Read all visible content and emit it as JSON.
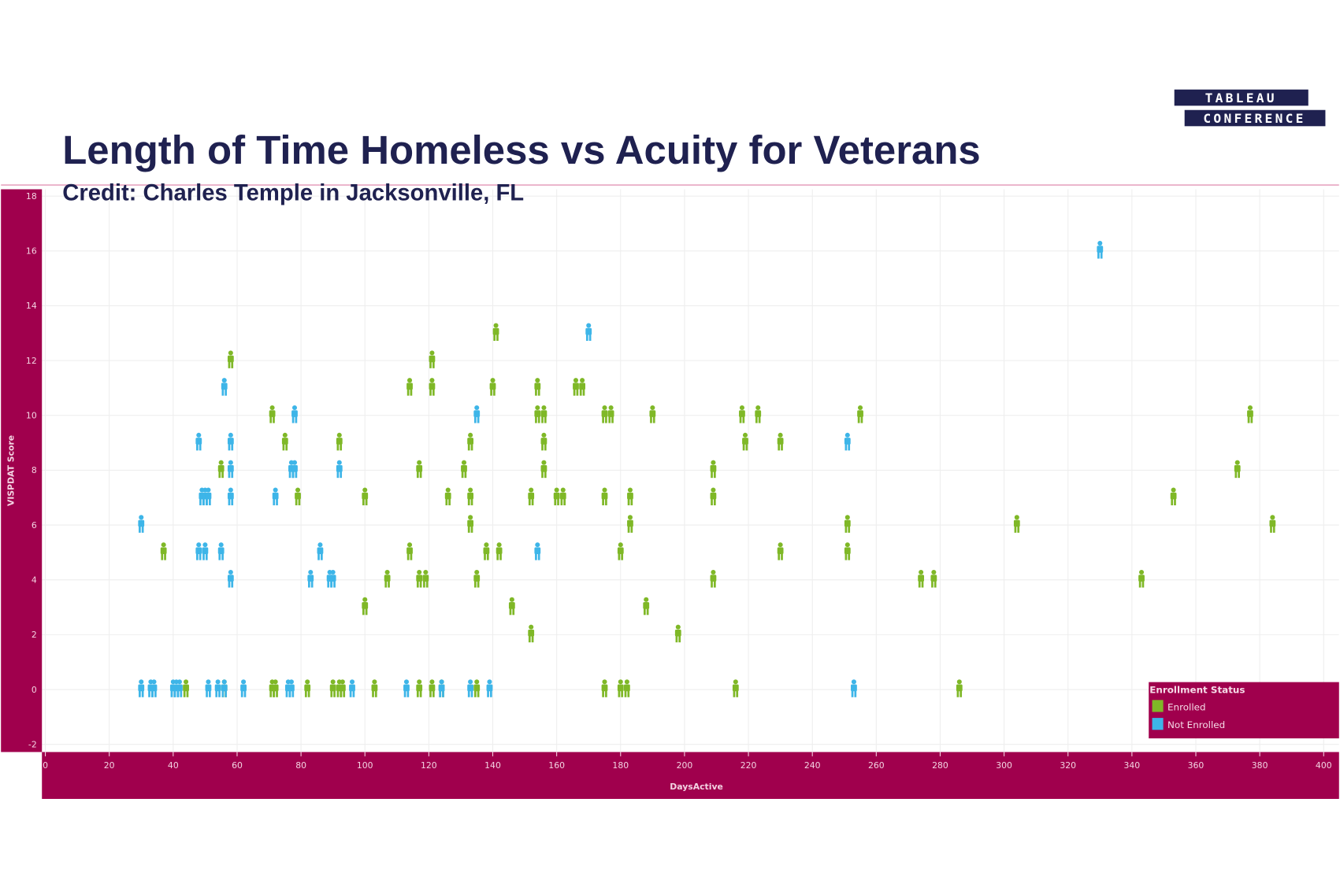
{
  "header": {
    "title": "Length of Time Homeless vs Acuity for Veterans",
    "credit": "Credit: Charles Temple in Jacksonville, FL",
    "logo_line1": "TABLEAU",
    "logo_line2": "CONFERENCE"
  },
  "colors": {
    "brand": "#a0004d",
    "title": "#1f2150",
    "enrolled": "#7fb827",
    "not_enrolled": "#3db5e8"
  },
  "chart_data": {
    "type": "scatter",
    "marker": "person-icon",
    "xlabel": "DaysActive",
    "ylabel": "VISPDAT Score",
    "xlim": [
      0,
      400
    ],
    "ylim": [
      -2,
      18
    ],
    "xticks": [
      "0",
      "20",
      "40",
      "60",
      "80",
      "100",
      "120",
      "140",
      "160",
      "180",
      "200",
      "220",
      "240",
      "260",
      "280",
      "300",
      "320",
      "340",
      "360",
      "380",
      "400"
    ],
    "yticks": [
      "-2",
      "0",
      "2",
      "4",
      "6",
      "8",
      "10",
      "12",
      "14",
      "16",
      "18"
    ],
    "grid": true,
    "legend": {
      "title": "Enrollment Status",
      "placement": "bottom-right"
    },
    "series": [
      {
        "name": "Enrolled",
        "color": "#7fb827",
        "points": [
          [
            37,
            5
          ],
          [
            58,
            12
          ],
          [
            55,
            8
          ],
          [
            71,
            10
          ],
          [
            75,
            9
          ],
          [
            79,
            7
          ],
          [
            92,
            9
          ],
          [
            100,
            7
          ],
          [
            100,
            3
          ],
          [
            107,
            4
          ],
          [
            114,
            11
          ],
          [
            114,
            5
          ],
          [
            117,
            8
          ],
          [
            117,
            4
          ],
          [
            119,
            4
          ],
          [
            121,
            12
          ],
          [
            121,
            11
          ],
          [
            126,
            7
          ],
          [
            131,
            8
          ],
          [
            133,
            9
          ],
          [
            133,
            7
          ],
          [
            133,
            6
          ],
          [
            135,
            4
          ],
          [
            138,
            5
          ],
          [
            142,
            5
          ],
          [
            140,
            11
          ],
          [
            141,
            13
          ],
          [
            146,
            3
          ],
          [
            152,
            7
          ],
          [
            152,
            2
          ],
          [
            154,
            11
          ],
          [
            154,
            10
          ],
          [
            156,
            10
          ],
          [
            156,
            9
          ],
          [
            156,
            8
          ],
          [
            160,
            7
          ],
          [
            162,
            7
          ],
          [
            166,
            11
          ],
          [
            168,
            11
          ],
          [
            175,
            10
          ],
          [
            177,
            10
          ],
          [
            175,
            7
          ],
          [
            180,
            5
          ],
          [
            183,
            6
          ],
          [
            183,
            7
          ],
          [
            188,
            3
          ],
          [
            190,
            10
          ],
          [
            198,
            2
          ],
          [
            209,
            7
          ],
          [
            209,
            8
          ],
          [
            209,
            4
          ],
          [
            218,
            10
          ],
          [
            223,
            10
          ],
          [
            219,
            9
          ],
          [
            230,
            9
          ],
          [
            230,
            5
          ],
          [
            251,
            6
          ],
          [
            251,
            5
          ],
          [
            255,
            10
          ],
          [
            274,
            4
          ],
          [
            278,
            4
          ],
          [
            304,
            6
          ],
          [
            343,
            4
          ],
          [
            353,
            7
          ],
          [
            373,
            8
          ],
          [
            377,
            10
          ],
          [
            384,
            6
          ],
          [
            44,
            0
          ],
          [
            56,
            0
          ],
          [
            71,
            0
          ],
          [
            72,
            0
          ],
          [
            82,
            0
          ],
          [
            90,
            0
          ],
          [
            92,
            0
          ],
          [
            93,
            0
          ],
          [
            103,
            0
          ],
          [
            117,
            0
          ],
          [
            121,
            0
          ],
          [
            124,
            0
          ],
          [
            135,
            0
          ],
          [
            175,
            0
          ],
          [
            180,
            0
          ],
          [
            182,
            0
          ],
          [
            216,
            0
          ],
          [
            286,
            0
          ]
        ]
      },
      {
        "name": "Not Enrolled",
        "color": "#3db5e8",
        "points": [
          [
            30,
            6
          ],
          [
            56,
            11
          ],
          [
            58,
            9
          ],
          [
            58,
            8
          ],
          [
            58,
            7
          ],
          [
            58,
            4
          ],
          [
            48,
            9
          ],
          [
            49,
            7
          ],
          [
            50,
            7
          ],
          [
            51,
            7
          ],
          [
            48,
            5
          ],
          [
            50,
            5
          ],
          [
            55,
            5
          ],
          [
            72,
            7
          ],
          [
            78,
            10
          ],
          [
            77,
            8
          ],
          [
            78,
            8
          ],
          [
            86,
            5
          ],
          [
            83,
            4
          ],
          [
            89,
            4
          ],
          [
            90,
            4
          ],
          [
            92,
            8
          ],
          [
            135,
            10
          ],
          [
            154,
            5
          ],
          [
            170,
            13
          ],
          [
            251,
            9
          ],
          [
            330,
            16
          ],
          [
            30,
            0
          ],
          [
            33,
            0
          ],
          [
            34,
            0
          ],
          [
            40,
            0
          ],
          [
            41,
            0
          ],
          [
            42,
            0
          ],
          [
            51,
            0
          ],
          [
            54,
            0
          ],
          [
            56,
            0
          ],
          [
            62,
            0
          ],
          [
            76,
            0
          ],
          [
            77,
            0
          ],
          [
            96,
            0
          ],
          [
            113,
            0
          ],
          [
            124,
            0
          ],
          [
            133,
            0
          ],
          [
            139,
            0
          ],
          [
            253,
            0
          ]
        ]
      }
    ]
  }
}
